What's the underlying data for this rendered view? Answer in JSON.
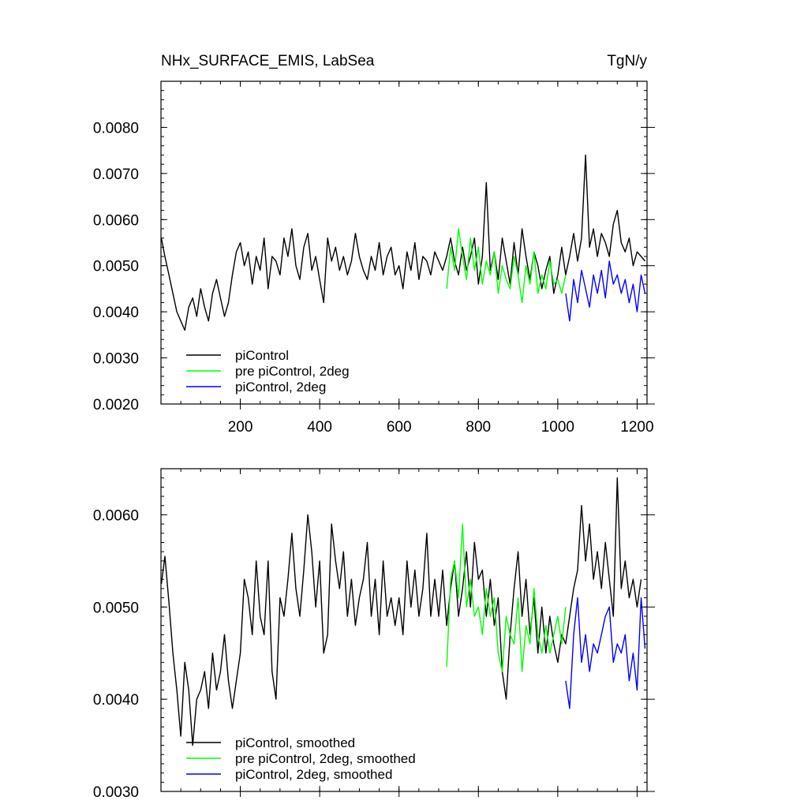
{
  "header": {
    "title": "NHx_SURFACE_EMIS, LabSea",
    "units": "TgN/y"
  },
  "chart_data": [
    {
      "type": "line",
      "title": "NHx_SURFACE_EMIS, LabSea",
      "units": "TgN/y",
      "xlim": [
        0,
        1225
      ],
      "ylim": [
        0.002,
        0.009
      ],
      "x_ticks": [
        200,
        400,
        600,
        800,
        1000,
        1200
      ],
      "x_tick_labels": [
        "200",
        "400",
        "600",
        "800",
        "1000",
        "1200"
      ],
      "y_ticks": [
        0.002,
        0.003,
        0.004,
        0.005,
        0.006,
        0.007,
        0.008
      ],
      "y_tick_labels": [
        "0.0020",
        "0.0030",
        "0.0040",
        "0.0050",
        "0.0060",
        "0.0070",
        "0.0080"
      ],
      "legend_placement": "bottom-left",
      "series": [
        {
          "name": "piControl",
          "color": "#000000",
          "x": [
            1,
            10,
            20,
            30,
            40,
            50,
            60,
            70,
            80,
            90,
            100,
            110,
            120,
            130,
            140,
            150,
            160,
            170,
            180,
            190,
            200,
            210,
            220,
            230,
            240,
            250,
            260,
            270,
            280,
            290,
            300,
            310,
            320,
            330,
            340,
            350,
            360,
            370,
            380,
            390,
            400,
            410,
            420,
            430,
            440,
            450,
            460,
            470,
            480,
            490,
            500,
            510,
            520,
            530,
            540,
            550,
            560,
            570,
            580,
            590,
            600,
            610,
            620,
            630,
            640,
            650,
            660,
            670,
            680,
            690,
            700,
            710,
            720,
            730,
            740,
            750,
            760,
            770,
            780,
            790,
            800,
            810,
            820,
            830,
            840,
            850,
            860,
            870,
            880,
            890,
            900,
            910,
            920,
            930,
            940,
            950,
            960,
            970,
            980,
            990,
            1000,
            1010,
            1020,
            1030,
            1040,
            1050,
            1060,
            1070,
            1080,
            1090,
            1100,
            1110,
            1120,
            1130,
            1140,
            1150,
            1160,
            1170,
            1180,
            1190,
            1200,
            1210,
            1220
          ],
          "values": [
            0.0056,
            0.0052,
            0.0048,
            0.0044,
            0.004,
            0.0038,
            0.0036,
            0.0041,
            0.0043,
            0.0039,
            0.0045,
            0.0041,
            0.0038,
            0.0044,
            0.0047,
            0.0043,
            0.0039,
            0.0042,
            0.0048,
            0.0053,
            0.0055,
            0.005,
            0.0053,
            0.0046,
            0.0052,
            0.0049,
            0.0056,
            0.0045,
            0.0052,
            0.0051,
            0.0048,
            0.0056,
            0.0052,
            0.0058,
            0.005,
            0.0047,
            0.0054,
            0.0057,
            0.0049,
            0.0052,
            0.0047,
            0.0042,
            0.0056,
            0.0051,
            0.0054,
            0.0049,
            0.0052,
            0.0048,
            0.0051,
            0.0057,
            0.0052,
            0.0049,
            0.0047,
            0.0052,
            0.0049,
            0.0055,
            0.0048,
            0.0052,
            0.0054,
            0.0048,
            0.005,
            0.0045,
            0.0053,
            0.0049,
            0.0055,
            0.0047,
            0.0052,
            0.0051,
            0.0048,
            0.0053,
            0.0051,
            0.0049,
            0.0052,
            0.0056,
            0.0051,
            0.0048,
            0.0054,
            0.0049,
            0.0052,
            0.0056,
            0.0046,
            0.0052,
            0.0068,
            0.0049,
            0.0053,
            0.0047,
            0.0056,
            0.0051,
            0.0046,
            0.0055,
            0.0048,
            0.0058,
            0.0052,
            0.0047,
            0.0053,
            0.005,
            0.0045,
            0.0049,
            0.0052,
            0.0044,
            0.0048,
            0.0054,
            0.0048,
            0.0052,
            0.0057,
            0.0051,
            0.0056,
            0.0074,
            0.0054,
            0.0058,
            0.0052,
            0.0057,
            0.0055,
            0.0052,
            0.0059,
            0.0062,
            0.0055,
            0.0053,
            0.0056,
            0.005,
            0.0053,
            0.0052,
            0.0051
          ]
        },
        {
          "name": "pre piControl, 2deg",
          "color": "#00ff00",
          "x": [
            720,
            730,
            740,
            750,
            760,
            770,
            780,
            790,
            800,
            810,
            820,
            830,
            840,
            850,
            860,
            870,
            880,
            890,
            900,
            910,
            920,
            930,
            940,
            950,
            960,
            970,
            980,
            990,
            1000,
            1010,
            1020
          ],
          "values": [
            0.0045,
            0.0054,
            0.0049,
            0.0058,
            0.0052,
            0.0047,
            0.0056,
            0.0049,
            0.0054,
            0.0046,
            0.0051,
            0.0048,
            0.0053,
            0.0044,
            0.005,
            0.0047,
            0.0045,
            0.0052,
            0.0048,
            0.0042,
            0.005,
            0.0046,
            0.0053,
            0.0044,
            0.0048,
            0.0045,
            0.0051,
            0.0046,
            0.0047,
            0.0044,
            0.0048
          ]
        },
        {
          "name": "piControl, 2deg",
          "color": "#0000ff",
          "x": [
            1020,
            1030,
            1040,
            1050,
            1060,
            1070,
            1080,
            1090,
            1100,
            1110,
            1120,
            1130,
            1140,
            1150,
            1160,
            1170,
            1180,
            1190,
            1200,
            1210,
            1220
          ],
          "values": [
            0.0044,
            0.0038,
            0.0047,
            0.0042,
            0.0049,
            0.0045,
            0.0041,
            0.0048,
            0.0044,
            0.0049,
            0.0043,
            0.0051,
            0.0046,
            0.0048,
            0.0044,
            0.0047,
            0.0042,
            0.0046,
            0.004,
            0.0048,
            0.0044
          ]
        }
      ]
    },
    {
      "type": "line",
      "xlim": [
        0,
        1225
      ],
      "ylim": [
        0.003,
        0.0065
      ],
      "x_ticks": [
        200,
        400,
        600,
        800,
        1000,
        1200
      ],
      "x_tick_labels": [],
      "y_ticks": [
        0.003,
        0.004,
        0.005,
        0.006
      ],
      "y_tick_labels": [
        "0.0030",
        "0.0040",
        "0.0050",
        "0.0060"
      ],
      "legend_placement": "bottom-left",
      "series": [
        {
          "name": "piControl, smoothed",
          "color": "#000000",
          "x": [
            1,
            10,
            20,
            30,
            40,
            50,
            60,
            70,
            80,
            90,
            100,
            110,
            120,
            130,
            140,
            150,
            160,
            170,
            180,
            190,
            200,
            210,
            220,
            230,
            240,
            250,
            260,
            270,
            280,
            290,
            300,
            310,
            320,
            330,
            340,
            350,
            360,
            370,
            380,
            390,
            400,
            410,
            420,
            430,
            440,
            450,
            460,
            470,
            480,
            490,
            500,
            510,
            520,
            530,
            540,
            550,
            560,
            570,
            580,
            590,
            600,
            610,
            620,
            630,
            640,
            650,
            660,
            670,
            680,
            690,
            700,
            710,
            720,
            730,
            740,
            750,
            760,
            770,
            780,
            790,
            800,
            810,
            820,
            830,
            840,
            850,
            860,
            870,
            880,
            890,
            900,
            910,
            920,
            930,
            940,
            950,
            960,
            970,
            980,
            990,
            1000,
            1010,
            1020,
            1030,
            1040,
            1050,
            1060,
            1070,
            1080,
            1090,
            1100,
            1110,
            1120,
            1130,
            1140,
            1150,
            1160,
            1170,
            1180,
            1190,
            1200,
            1210
          ],
          "values": [
            0.00525,
            0.00555,
            0.00505,
            0.0045,
            0.0041,
            0.0036,
            0.0044,
            0.0041,
            0.0035,
            0.004,
            0.0041,
            0.0043,
            0.0039,
            0.0045,
            0.0041,
            0.0043,
            0.0047,
            0.0042,
            0.0039,
            0.0042,
            0.0045,
            0.0053,
            0.0051,
            0.0047,
            0.0055,
            0.0049,
            0.0047,
            0.0055,
            0.0043,
            0.004,
            0.0051,
            0.0049,
            0.0053,
            0.0058,
            0.0052,
            0.0049,
            0.0054,
            0.006,
            0.0056,
            0.005,
            0.0055,
            0.0045,
            0.0047,
            0.0059,
            0.0055,
            0.0052,
            0.0056,
            0.0049,
            0.0053,
            0.0048,
            0.0051,
            0.0053,
            0.0057,
            0.0049,
            0.0053,
            0.0047,
            0.0055,
            0.0049,
            0.0051,
            0.0048,
            0.0051,
            0.0047,
            0.0055,
            0.005,
            0.0054,
            0.0049,
            0.0052,
            0.0058,
            0.0049,
            0.0053,
            0.0049,
            0.0054,
            0.0048,
            0.0052,
            0.0055,
            0.0049,
            0.0052,
            0.0056,
            0.005,
            0.0057,
            0.0053,
            0.0054,
            0.0049,
            0.0053,
            0.0048,
            0.0051,
            0.0043,
            0.004,
            0.0047,
            0.0052,
            0.0056,
            0.0049,
            0.0053,
            0.0047,
            0.0051,
            0.0045,
            0.005,
            0.0045,
            0.0049,
            0.0046,
            0.0044,
            0.0047,
            0.0046,
            0.0049,
            0.0052,
            0.0054,
            0.0061,
            0.0055,
            0.0059,
            0.0053,
            0.0056,
            0.0052,
            0.0057,
            0.0053,
            0.0049,
            0.0064,
            0.0052,
            0.0055,
            0.0051,
            0.0053,
            0.005,
            0.0053
          ]
        },
        {
          "name": "pre piControl, 2deg, smoothed",
          "color": "#00ff00",
          "x": [
            720,
            730,
            740,
            750,
            760,
            770,
            780,
            790,
            800,
            810,
            820,
            830,
            840,
            850,
            860,
            870,
            880,
            890,
            900,
            910,
            920,
            930,
            940,
            950,
            960,
            970,
            980,
            990,
            1000,
            1010,
            1020
          ],
          "values": [
            0.00435,
            0.0053,
            0.0055,
            0.0051,
            0.0059,
            0.005,
            0.0053,
            0.0049,
            0.005,
            0.0047,
            0.0052,
            0.0049,
            0.0051,
            0.0045,
            0.0043,
            0.0049,
            0.0047,
            0.0046,
            0.0051,
            0.0043,
            0.0048,
            0.0046,
            0.0052,
            0.0047,
            0.0045,
            0.0048,
            0.0045,
            0.0047,
            0.0049,
            0.0046,
            0.005
          ]
        },
        {
          "name": "piControl, 2deg, smoothed",
          "color": "#0000ff",
          "x": [
            1020,
            1030,
            1040,
            1050,
            1060,
            1070,
            1080,
            1090,
            1100,
            1110,
            1120,
            1130,
            1140,
            1150,
            1160,
            1170,
            1180,
            1190,
            1200,
            1210,
            1220
          ],
          "values": [
            0.0042,
            0.0039,
            0.0047,
            0.0051,
            0.0044,
            0.0047,
            0.0043,
            0.0046,
            0.0045,
            0.0047,
            0.0049,
            0.005,
            0.0044,
            0.0046,
            0.0045,
            0.0047,
            0.0042,
            0.0045,
            0.0041,
            0.0051,
            0.00455
          ]
        }
      ]
    }
  ]
}
